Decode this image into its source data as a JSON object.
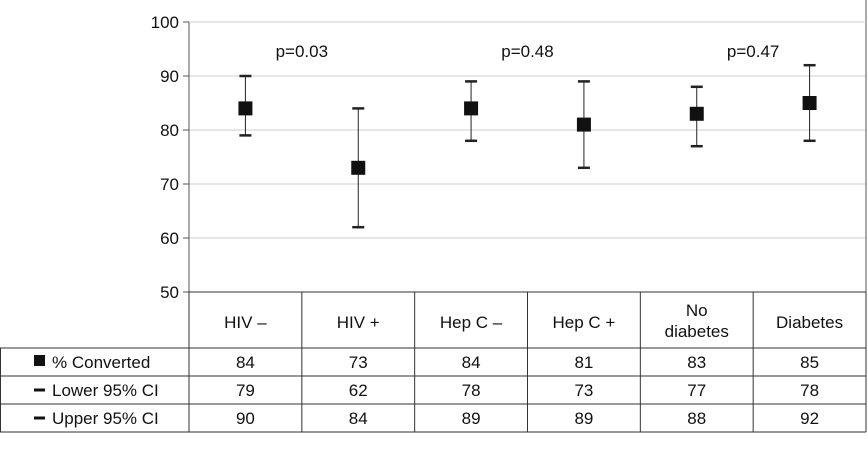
{
  "chart_data": {
    "type": "scatter",
    "subtype": "point-with-error-bars",
    "categories": [
      "HIV –",
      "HIV +",
      "Hep C –",
      "Hep C +",
      "No diabetes",
      "Diabetes"
    ],
    "series": [
      {
        "name": "% Converted",
        "values": [
          84,
          73,
          84,
          81,
          83,
          85
        ]
      },
      {
        "name": "Lower 95% CI",
        "values": [
          79,
          62,
          78,
          73,
          77,
          78
        ]
      },
      {
        "name": "Upper 95% CI",
        "values": [
          90,
          84,
          89,
          89,
          88,
          92
        ]
      }
    ],
    "ylim": [
      50,
      100
    ],
    "yticks": [
      50,
      60,
      70,
      80,
      90,
      100
    ],
    "grid": true,
    "annotations": [
      "p=0.03",
      "p=0.48",
      "p=0.47"
    ],
    "legend": "data-table-below",
    "marker_color": "#111111"
  }
}
